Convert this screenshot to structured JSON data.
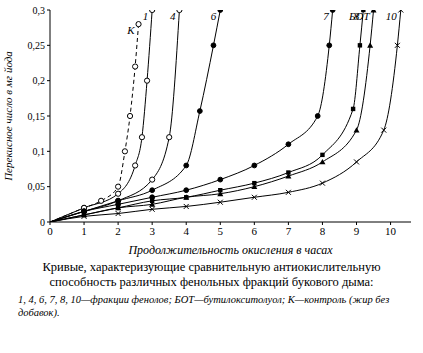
{
  "chart_data": {
    "type": "line",
    "title": "Кривые, характеризующие сравнительную антиокислительную способность различных фенольных фракций букового дыма:",
    "subtitle": "1, 4, 6, 7, 8, 10—фракции фенолов; БОТ—бутилокситолуол; К—контроль (жир без добавок).",
    "x_label": "Продолжительность окисления в часах",
    "y_label": "Перекисное число в мг йода",
    "xlim": [
      0,
      10.6
    ],
    "xticks": [
      0,
      1,
      2,
      3,
      4,
      5,
      6,
      7,
      8,
      9,
      10
    ],
    "ylim": [
      0,
      0.3
    ],
    "yticks": [
      0,
      {
        "value": 0.05,
        "label": "0,05"
      },
      {
        "value": 0.1,
        "label": "0,1"
      },
      {
        "value": 0.15,
        "label": "0,15"
      },
      {
        "value": 0.2,
        "label": "0,2"
      },
      {
        "value": 0.25,
        "label": "0,25"
      },
      {
        "value": 0.3,
        "label": "0,3"
      }
    ],
    "grid": false,
    "series": [
      {
        "name": "К",
        "color": "#000000",
        "line_style": "dashed",
        "marker": "circle-open",
        "x": [
          0,
          1,
          1.5,
          2,
          2.2,
          2.35,
          2.5,
          2.6
        ],
        "values": [
          0,
          0.02,
          0.03,
          0.05,
          0.1,
          0.15,
          0.22,
          0.28
        ]
      },
      {
        "name": "1",
        "color": "#000000",
        "line_style": "solid",
        "marker": "circle-open",
        "x": [
          0,
          1,
          2,
          2.5,
          2.7,
          2.85,
          3.0
        ],
        "values": [
          0,
          0.02,
          0.04,
          0.08,
          0.12,
          0.2,
          0.3
        ]
      },
      {
        "name": "4",
        "color": "#000000",
        "line_style": "solid",
        "marker": "circle-open",
        "x": [
          0,
          1,
          2,
          3,
          3.5,
          3.8
        ],
        "values": [
          0,
          0.015,
          0.03,
          0.06,
          0.12,
          0.3
        ]
      },
      {
        "name": "6",
        "color": "#000000",
        "line_style": "solid",
        "marker": "dot",
        "x": [
          0,
          1,
          2,
          3,
          4,
          4.4,
          4.8,
          5.0
        ],
        "values": [
          0,
          0.015,
          0.03,
          0.045,
          0.08,
          0.157,
          0.25,
          0.3
        ]
      },
      {
        "name": "7",
        "color": "#000000",
        "line_style": "solid",
        "marker": "dot",
        "x": [
          0,
          1,
          2,
          3,
          4,
          5,
          6,
          7,
          7.86,
          8.2,
          8.3
        ],
        "values": [
          0,
          0.015,
          0.025,
          0.035,
          0.045,
          0.06,
          0.08,
          0.11,
          0.15,
          0.25,
          0.3
        ]
      },
      {
        "name": "8",
        "color": "#000000",
        "line_style": "solid",
        "marker": "square",
        "x": [
          0,
          1,
          2,
          3,
          4,
          5,
          6,
          7,
          8,
          8.9,
          9.1,
          9.2
        ],
        "values": [
          0,
          0.01,
          0.02,
          0.03,
          0.035,
          0.045,
          0.055,
          0.07,
          0.095,
          0.16,
          0.25,
          0.3
        ]
      },
      {
        "name": "БОТ",
        "color": "#000000",
        "line_style": "solid",
        "marker": "triangle",
        "x": [
          0,
          1,
          2,
          3,
          4,
          5,
          6,
          7,
          8,
          9,
          9.4,
          9.5
        ],
        "values": [
          0,
          0.01,
          0.02,
          0.025,
          0.035,
          0.04,
          0.05,
          0.065,
          0.085,
          0.13,
          0.25,
          0.3
        ]
      },
      {
        "name": "10",
        "color": "#000000",
        "line_style": "solid",
        "marker": "cross",
        "x": [
          0,
          1,
          2,
          3,
          4,
          5,
          6,
          7,
          8,
          9,
          9.8,
          10.2,
          10.3
        ],
        "values": [
          0,
          0.008,
          0.012,
          0.018,
          0.022,
          0.028,
          0.035,
          0.042,
          0.055,
          0.085,
          0.13,
          0.25,
          0.3
        ]
      }
    ]
  }
}
